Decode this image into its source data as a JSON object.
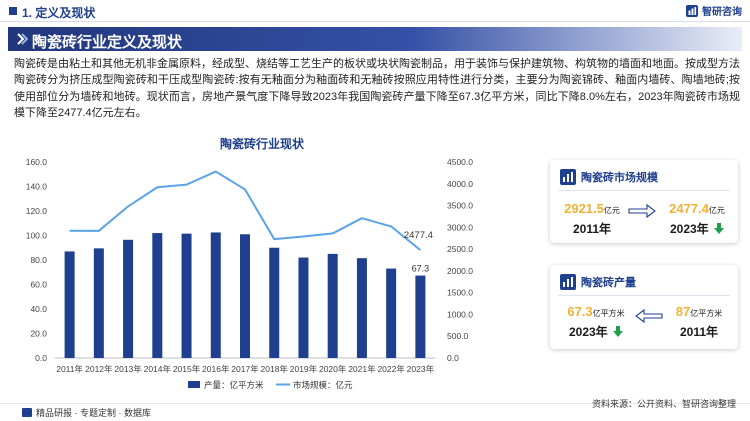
{
  "header": {
    "section": "1. 定义及现状",
    "brand_name": "智研咨询"
  },
  "banner": {
    "title": "陶瓷砖行业定义及现状"
  },
  "intro": "陶瓷砖是由粘土和其他无机非金属原料，经成型、烧结等工艺生产的板状或块状陶瓷制品，用于装饰与保护建筑物、构筑物的墙面和地面。按成型方法陶瓷砖分为挤压成型陶瓷砖和干压成型陶瓷砖:按有无釉面分为釉面砖和无釉砖按照应用特性进行分类，主要分为陶瓷锦砖、釉面内墙砖、陶墙地砖;按使用部位分为墙砖和地砖。现状而言，房地产景气度下降导致2023年我国陶瓷砖产量下降至67.3亿平方米，同比下降8.0%左右，2023年陶瓷砖市场规模下降至2477.4亿元左右。",
  "chart_data": {
    "type": "bar",
    "title": "陶瓷砖行业现状",
    "categories": [
      "2011年",
      "2012年",
      "2013年",
      "2014年",
      "2015年",
      "2016年",
      "2017年",
      "2018年",
      "2019年",
      "2020年",
      "2021年",
      "2022年",
      "2023年"
    ],
    "series": [
      {
        "name": "产量：亿平方米",
        "type": "bar",
        "axis": "left",
        "color": "#1f3f8f",
        "values": [
          87,
          89.5,
          96.5,
          102,
          101.5,
          102.5,
          101,
          90,
          82,
          85,
          81.5,
          73,
          67.3
        ]
      },
      {
        "name": "市场规模：亿元",
        "type": "line",
        "axis": "right",
        "color": "#5aa3e6",
        "values": [
          2921.5,
          2920,
          3480,
          3920,
          3980,
          4280,
          3870,
          2730,
          2790,
          2860,
          3210,
          3020,
          2477.4
        ]
      }
    ],
    "y_left": {
      "min": 0,
      "max": 160,
      "step": 20,
      "ticks": [
        "0.0",
        "20.0",
        "40.0",
        "60.0",
        "80.0",
        "100.0",
        "120.0",
        "140.0",
        "160.0"
      ]
    },
    "y_right": {
      "min": 0,
      "max": 4500,
      "step": 500,
      "ticks": [
        "0.0",
        "500.0",
        "1000.0",
        "1500.0",
        "2000.0",
        "2500.0",
        "3000.0",
        "3500.0",
        "4000.0",
        "4500.0"
      ]
    },
    "data_labels": {
      "bar_last": "67.3",
      "line_last": "2477.4"
    },
    "legend_position": "bottom",
    "grid": false
  },
  "cards": {
    "market": {
      "title": "陶瓷砖市场规模",
      "left_value": "2921.5",
      "left_unit": "亿元",
      "left_year": "2011年",
      "right_value": "2477.4",
      "right_unit": "亿元",
      "right_year": "2023年",
      "trend_color": "#21a04a"
    },
    "output": {
      "title": "陶瓷砖产量",
      "left_value": "67.3",
      "left_unit": "亿平方米",
      "left_year": "2023年",
      "right_value": "87",
      "right_unit": "亿平方米",
      "right_year": "2011年",
      "trend_color": "#21a04a"
    }
  },
  "footer": {
    "left": "精品研报 · 专题定制 · 数据库",
    "right": "资料来源：公开资料、智研咨询整理"
  },
  "colors": {
    "primary": "#1f3f8f",
    "accent": "#f3b133",
    "line": "#5aa3e6",
    "down": "#21a04a"
  }
}
